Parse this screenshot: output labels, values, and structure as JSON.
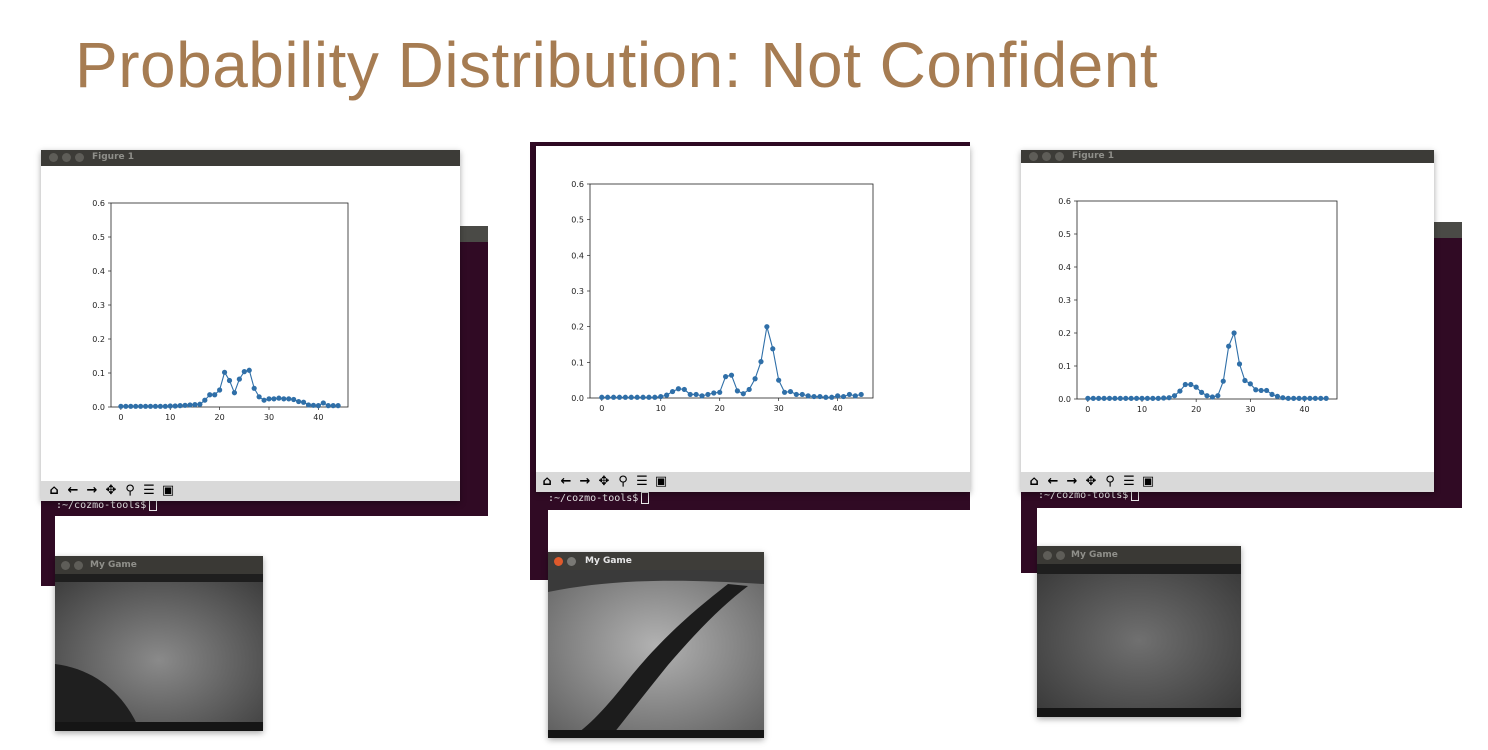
{
  "title": "Probability Distribution: Not Confident",
  "terminal": {
    "prompt": ":~/cozmo-tools$"
  },
  "figure_window": {
    "title": "Figure 1"
  },
  "game_window": {
    "title": "My Game"
  },
  "toolbar_icons": [
    "home-icon",
    "back-arrow-icon",
    "forward-arrow-icon",
    "pan-icon",
    "zoom-icon",
    "configure-subplots-icon",
    "save-icon"
  ],
  "colors": {
    "title": "#a67c52",
    "series": "#2f6fa8",
    "terminal": "#300a24",
    "titlebar": "#3c3b37"
  },
  "chart_data": [
    {
      "type": "line",
      "x": [
        0,
        1,
        2,
        3,
        4,
        5,
        6,
        7,
        8,
        9,
        10,
        11,
        12,
        13,
        14,
        15,
        16,
        17,
        18,
        19,
        20,
        21,
        22,
        23,
        24,
        25,
        26,
        27,
        28,
        29,
        30,
        31,
        32,
        33,
        34,
        35,
        36,
        37,
        38,
        39,
        40,
        41,
        42,
        43,
        44
      ],
      "values": [
        0.002,
        0.002,
        0.002,
        0.002,
        0.002,
        0.002,
        0.002,
        0.002,
        0.002,
        0.002,
        0.003,
        0.003,
        0.004,
        0.005,
        0.006,
        0.007,
        0.008,
        0.02,
        0.036,
        0.036,
        0.05,
        0.102,
        0.078,
        0.042,
        0.082,
        0.104,
        0.108,
        0.055,
        0.03,
        0.02,
        0.024,
        0.024,
        0.026,
        0.024,
        0.024,
        0.022,
        0.016,
        0.014,
        0.006,
        0.005,
        0.004,
        0.012,
        0.004,
        0.004,
        0.004
      ],
      "xlim": [
        -2,
        46
      ],
      "ylim": [
        0,
        0.6
      ],
      "xticks": [
        "0",
        "10",
        "20",
        "30",
        "40"
      ],
      "yticks": [
        "0.0",
        "0.1",
        "0.2",
        "0.3",
        "0.4",
        "0.5",
        "0.6"
      ]
    },
    {
      "type": "line",
      "x": [
        0,
        1,
        2,
        3,
        4,
        5,
        6,
        7,
        8,
        9,
        10,
        11,
        12,
        13,
        14,
        15,
        16,
        17,
        18,
        19,
        20,
        21,
        22,
        23,
        24,
        25,
        26,
        27,
        28,
        29,
        30,
        31,
        32,
        33,
        34,
        35,
        36,
        37,
        38,
        39,
        40,
        41,
        42,
        43,
        44
      ],
      "values": [
        0.002,
        0.002,
        0.002,
        0.002,
        0.002,
        0.002,
        0.002,
        0.002,
        0.002,
        0.002,
        0.004,
        0.008,
        0.018,
        0.026,
        0.024,
        0.01,
        0.01,
        0.006,
        0.01,
        0.014,
        0.016,
        0.06,
        0.064,
        0.02,
        0.012,
        0.024,
        0.054,
        0.102,
        0.2,
        0.138,
        0.05,
        0.016,
        0.018,
        0.01,
        0.01,
        0.006,
        0.004,
        0.004,
        0.002,
        0.002,
        0.006,
        0.004,
        0.01,
        0.006,
        0.01
      ],
      "xlim": [
        -2,
        46
      ],
      "ylim": [
        0,
        0.6
      ],
      "xticks": [
        "0",
        "10",
        "20",
        "30",
        "40"
      ],
      "yticks": [
        "0.0",
        "0.1",
        "0.2",
        "0.3",
        "0.4",
        "0.5",
        "0.6"
      ]
    },
    {
      "type": "line",
      "x": [
        0,
        1,
        2,
        3,
        4,
        5,
        6,
        7,
        8,
        9,
        10,
        11,
        12,
        13,
        14,
        15,
        16,
        17,
        18,
        19,
        20,
        21,
        22,
        23,
        24,
        25,
        26,
        27,
        28,
        29,
        30,
        31,
        32,
        33,
        34,
        35,
        36,
        37,
        38,
        39,
        40,
        41,
        42,
        43,
        44
      ],
      "values": [
        0.002,
        0.002,
        0.002,
        0.002,
        0.002,
        0.002,
        0.002,
        0.002,
        0.002,
        0.002,
        0.002,
        0.002,
        0.002,
        0.002,
        0.003,
        0.004,
        0.01,
        0.024,
        0.044,
        0.044,
        0.036,
        0.02,
        0.01,
        0.006,
        0.01,
        0.054,
        0.16,
        0.2,
        0.106,
        0.056,
        0.046,
        0.028,
        0.026,
        0.026,
        0.014,
        0.008,
        0.004,
        0.002,
        0.002,
        0.002,
        0.002,
        0.002,
        0.002,
        0.002,
        0.002
      ],
      "xlim": [
        -2,
        46
      ],
      "ylim": [
        0,
        0.6
      ],
      "xticks": [
        "0",
        "10",
        "20",
        "30",
        "40"
      ],
      "yticks": [
        "0.0",
        "0.1",
        "0.2",
        "0.3",
        "0.4",
        "0.5",
        "0.6"
      ]
    }
  ]
}
